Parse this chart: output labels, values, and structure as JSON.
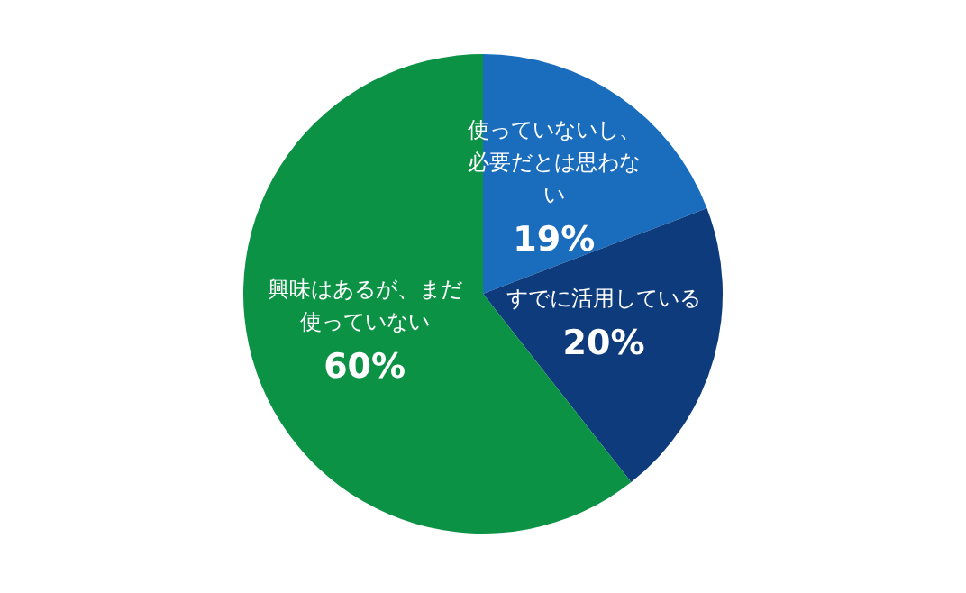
{
  "chart_data": {
    "type": "pie",
    "categories": [
      "使っていないし、必要だとは思わない",
      "すでに活用している",
      "興味はあるが、まだ使っていない"
    ],
    "values": [
      19,
      20,
      60
    ],
    "value_labels": [
      "19%",
      "20%",
      "60%"
    ],
    "colors": [
      "#1a6cbd",
      "#0e3b7c",
      "#0b9245"
    ],
    "legend": false
  }
}
